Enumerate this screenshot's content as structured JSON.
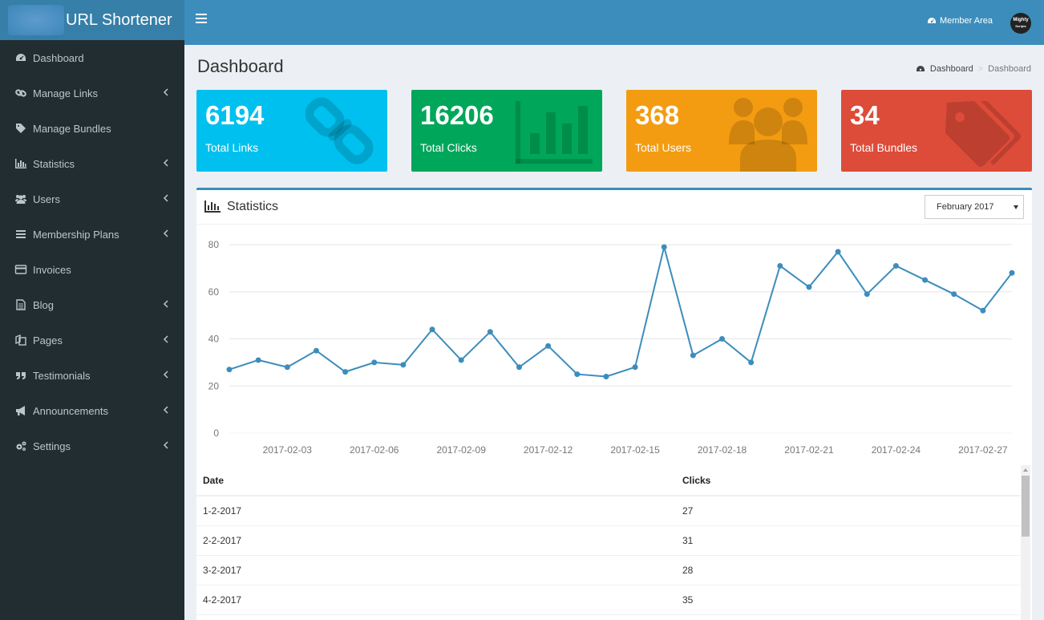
{
  "app": {
    "title": "URL Shortener"
  },
  "header": {
    "member_area": "Member Area",
    "avatar_text_1": "Mighty",
    "avatar_text_2": "Scripts"
  },
  "sidebar": {
    "items": [
      {
        "label": "Dashboard",
        "icon": "dashboard-icon",
        "has_children": false
      },
      {
        "label": "Manage Links",
        "icon": "link-icon",
        "has_children": true
      },
      {
        "label": "Manage Bundles",
        "icon": "tags-icon",
        "has_children": false
      },
      {
        "label": "Statistics",
        "icon": "bar-chart-icon",
        "has_children": true
      },
      {
        "label": "Users",
        "icon": "users-icon",
        "has_children": true
      },
      {
        "label": "Membership Plans",
        "icon": "list-icon",
        "has_children": true
      },
      {
        "label": "Invoices",
        "icon": "credit-card-icon",
        "has_children": false
      },
      {
        "label": "Blog",
        "icon": "file-icon",
        "has_children": true
      },
      {
        "label": "Pages",
        "icon": "copy-icon",
        "has_children": true
      },
      {
        "label": "Testimonials",
        "icon": "quote-icon",
        "has_children": true
      },
      {
        "label": "Announcements",
        "icon": "bullhorn-icon",
        "has_children": true
      },
      {
        "label": "Settings",
        "icon": "cogs-icon",
        "has_children": true
      }
    ]
  },
  "page": {
    "title": "Dashboard"
  },
  "breadcrumb": {
    "home": "Dashboard",
    "current": "Dashboard"
  },
  "stats": [
    {
      "value": "6194",
      "label": "Total Links",
      "color": "#00c0ef",
      "icon": "chain-icon"
    },
    {
      "value": "16206",
      "label": "Total Clicks",
      "color": "#00a65a",
      "icon": "bar-chart-icon"
    },
    {
      "value": "368",
      "label": "Total Users",
      "color": "#f39c12",
      "icon": "users-icon"
    },
    {
      "value": "34",
      "label": "Total Bundles",
      "color": "#dd4b39",
      "icon": "tags-icon"
    }
  ],
  "statistics": {
    "title": "Statistics",
    "month_selected": "February 2017",
    "table": {
      "headers": [
        "Date",
        "Clicks"
      ],
      "rows": [
        [
          "1-2-2017",
          "27"
        ],
        [
          "2-2-2017",
          "31"
        ],
        [
          "3-2-2017",
          "28"
        ],
        [
          "4-2-2017",
          "35"
        ]
      ]
    }
  },
  "chart_data": {
    "type": "line",
    "x": [
      "2017-02-01",
      "2017-02-02",
      "2017-02-03",
      "2017-02-04",
      "2017-02-05",
      "2017-02-06",
      "2017-02-07",
      "2017-02-08",
      "2017-02-09",
      "2017-02-10",
      "2017-02-11",
      "2017-02-12",
      "2017-02-13",
      "2017-02-14",
      "2017-02-15",
      "2017-02-16",
      "2017-02-17",
      "2017-02-18",
      "2017-02-19",
      "2017-02-20",
      "2017-02-21",
      "2017-02-22",
      "2017-02-23",
      "2017-02-24",
      "2017-02-25",
      "2017-02-26",
      "2017-02-27",
      "2017-02-28"
    ],
    "x_tick_labels": [
      "2017-02-03",
      "2017-02-06",
      "2017-02-09",
      "2017-02-12",
      "2017-02-15",
      "2017-02-18",
      "2017-02-21",
      "2017-02-24",
      "2017-02-27"
    ],
    "series": [
      {
        "values": [
          27,
          31,
          28,
          35,
          26,
          30,
          29,
          44,
          31,
          43,
          28,
          37,
          25,
          24,
          28,
          79,
          33,
          40,
          30,
          71,
          62,
          77,
          59,
          71,
          65,
          59,
          52,
          68
        ]
      }
    ],
    "ylim": [
      0,
      80
    ],
    "y_ticks": [
      0,
      20,
      40,
      60,
      80
    ],
    "grid": true,
    "color": "#3c8dbc"
  }
}
